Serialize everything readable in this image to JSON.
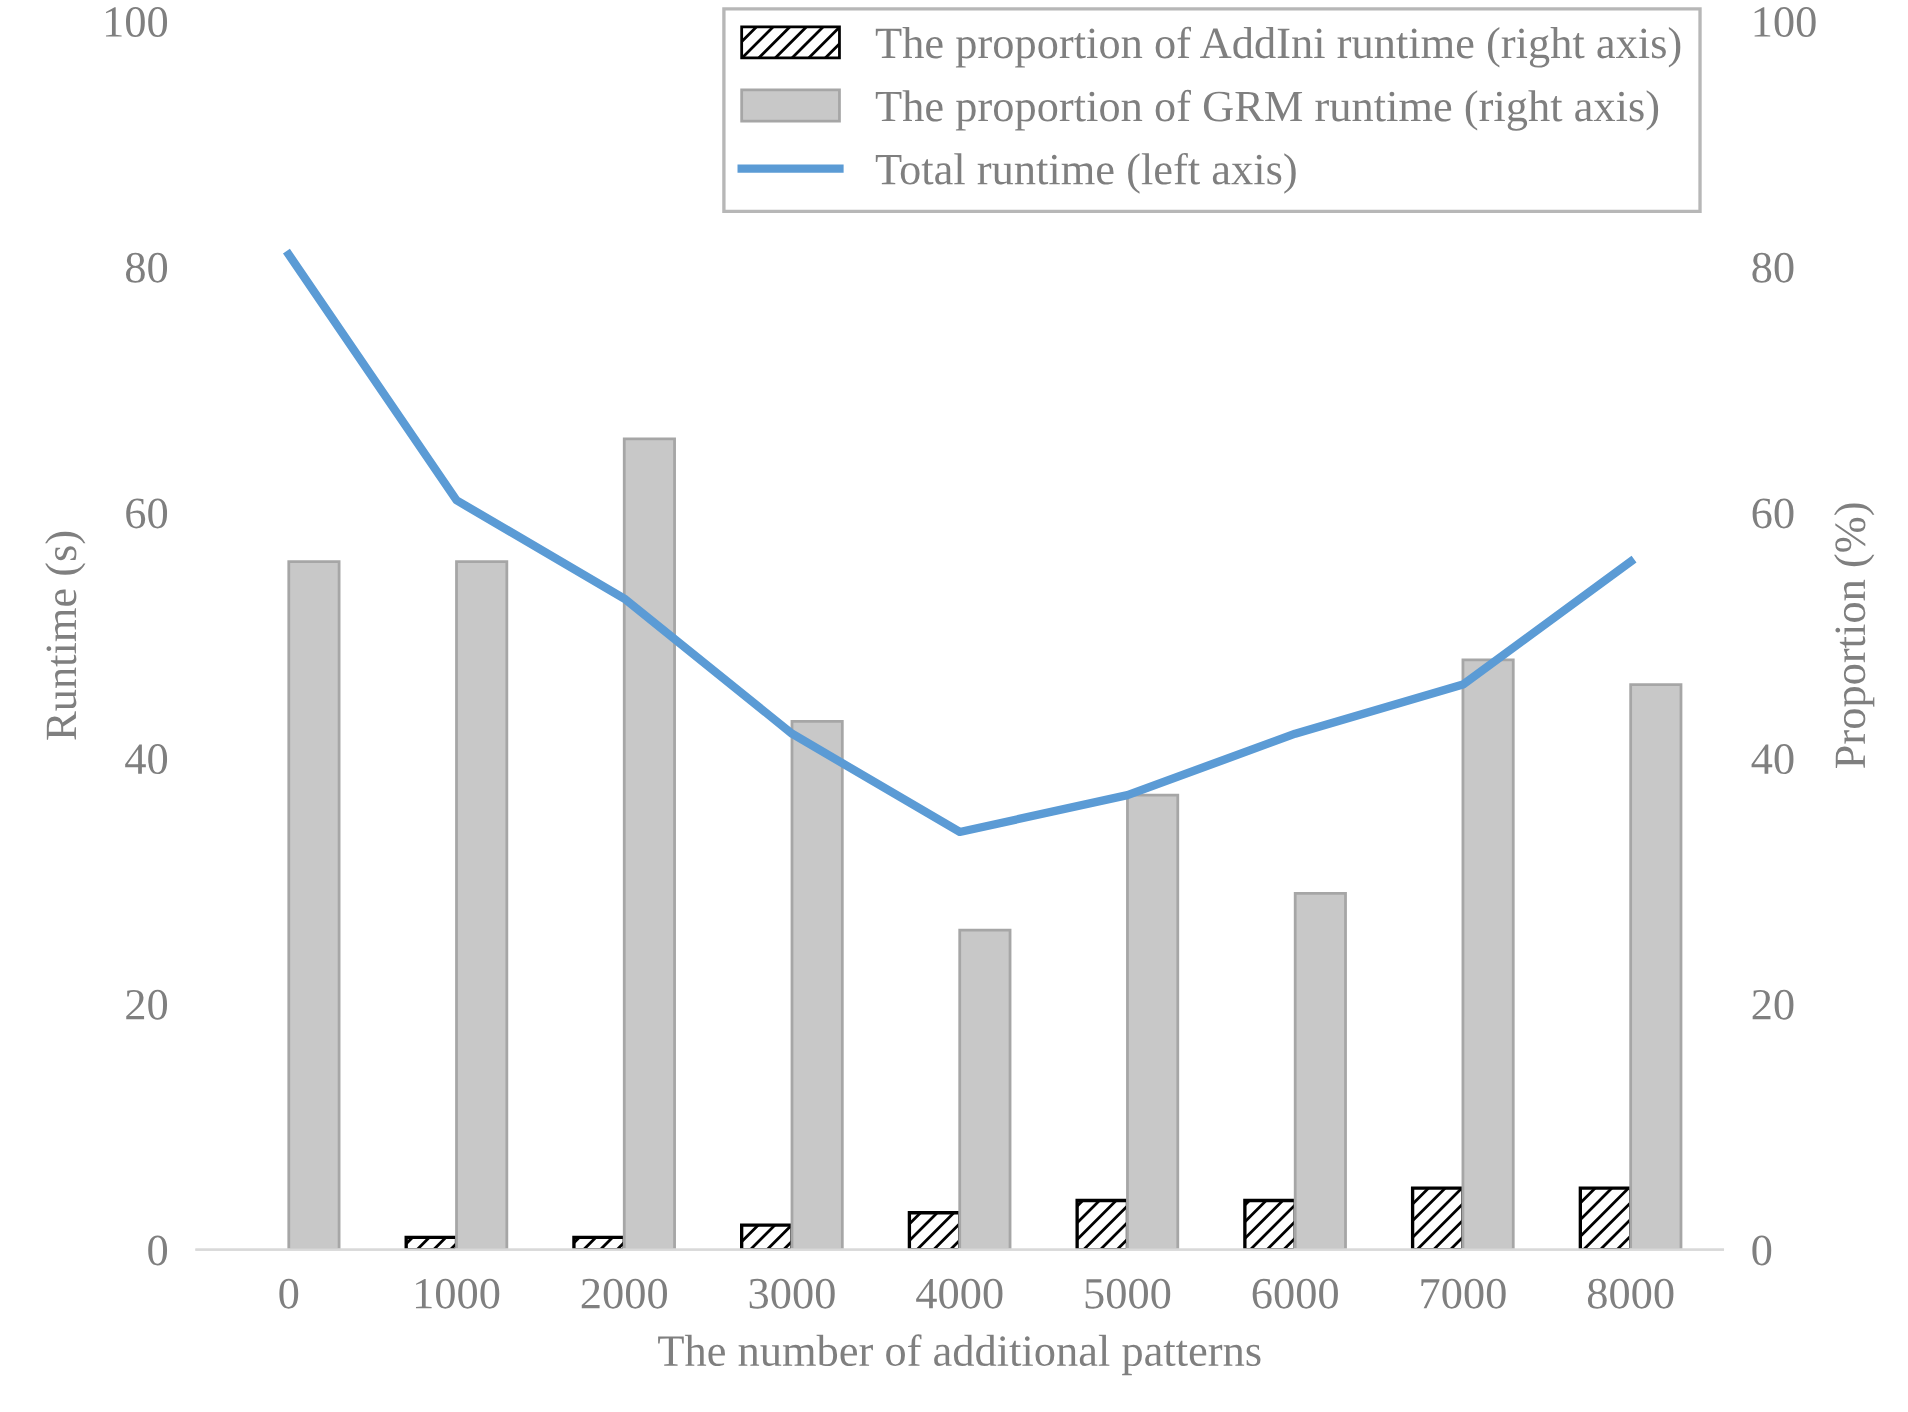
{
  "chart_data": {
    "type": "bar",
    "xlabel": "The number of additional patterns",
    "ylabel": "Runtime (s)",
    "y2label": "Proportion (%)",
    "categories": [
      "0",
      "1000",
      "2000",
      "3000",
      "4000",
      "5000",
      "6000",
      "7000",
      "8000"
    ],
    "series": [
      {
        "name": "The proportion of AddIni runtime (right axis)",
        "axis": "y2",
        "color": "#000000",
        "values": [
          0,
          1,
          1,
          2,
          3,
          4,
          4,
          5,
          5
        ]
      },
      {
        "name": "The proportion of GRM runtime (right axis)",
        "axis": "y2",
        "color": "#c8c8c8",
        "values": [
          56,
          56,
          66,
          43,
          26,
          37,
          29,
          48,
          46
        ]
      },
      {
        "name": "Total runtime (left axis)",
        "type": "line",
        "axis": "y",
        "color": "#5b9bd5",
        "values": [
          81,
          61,
          53,
          42,
          34,
          37,
          42,
          46,
          56
        ]
      }
    ],
    "ylim": [
      0,
      100
    ],
    "yticks": [
      0,
      20,
      40,
      60,
      80,
      100
    ],
    "y2lim": [
      0,
      100
    ],
    "y2ticks": [
      0,
      20,
      40,
      60,
      80,
      100
    ],
    "grid": false,
    "legend": "top right",
    "marker": "none",
    "line_style": "solid"
  }
}
